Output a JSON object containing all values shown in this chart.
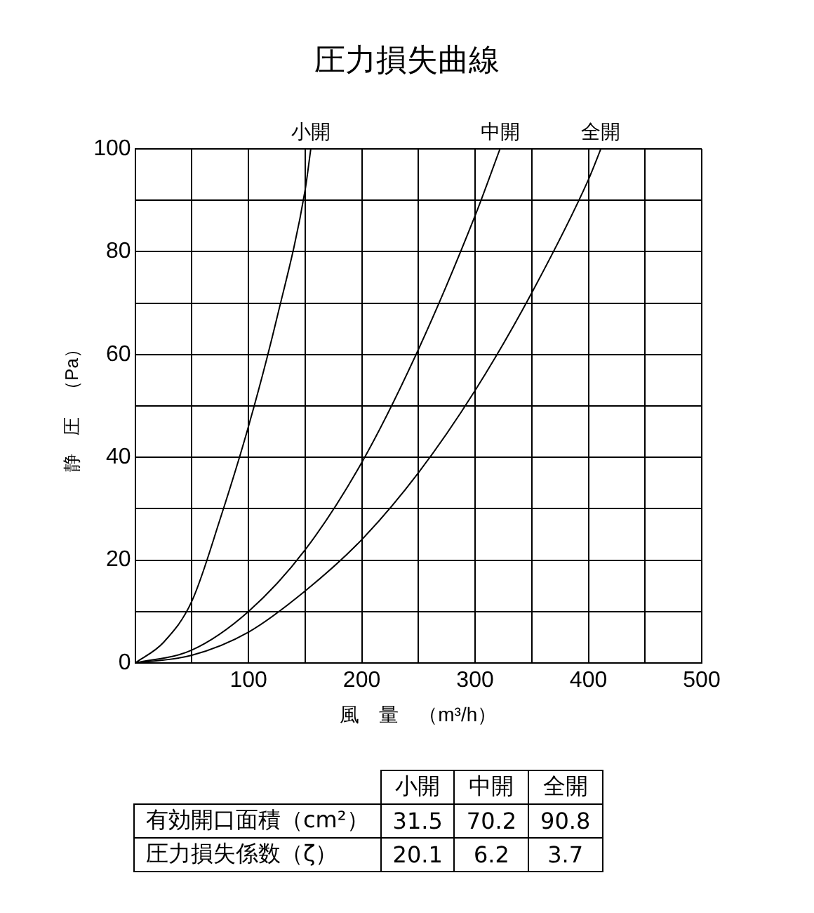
{
  "chart_data": {
    "type": "line",
    "title": "圧力損失曲線",
    "xlabel": "風　量　（m³/h）",
    "ylabel": "静　圧　（Pa）",
    "series": [
      {
        "name": "小開",
        "color": "#000000",
        "x": [
          0,
          25,
          50,
          75,
          100,
          125,
          150,
          155
        ],
        "values": [
          0,
          4,
          12,
          28,
          46,
          67,
          92,
          100
        ]
      },
      {
        "name": "中開",
        "color": "#000000",
        "x": [
          0,
          50,
          100,
          150,
          200,
          250,
          300,
          322
        ],
        "values": [
          0,
          2.5,
          10,
          22,
          39,
          61,
          87,
          100
        ]
      },
      {
        "name": "全開",
        "color": "#000000",
        "x": [
          0,
          50,
          100,
          150,
          200,
          250,
          300,
          350,
          400,
          411
        ],
        "values": [
          0,
          1.5,
          6,
          14,
          24,
          37,
          53,
          72,
          94,
          100
        ]
      }
    ],
    "xlim": [
      0,
      500
    ],
    "ylim": [
      0,
      100
    ],
    "xticks": [
      {
        "value": 0,
        "label": null
      },
      {
        "value": 50,
        "label": null
      },
      100,
      {
        "value": 150,
        "label": null
      },
      200,
      {
        "value": 250,
        "label": null
      },
      300,
      {
        "value": 350,
        "label": null
      },
      400,
      {
        "value": 450,
        "label": null
      },
      500
    ],
    "yticks": [
      0,
      {
        "value": 10,
        "label": null
      },
      20,
      {
        "value": 30,
        "label": null
      },
      40,
      {
        "value": 50,
        "label": null
      },
      60,
      {
        "value": 70,
        "label": null
      },
      80,
      {
        "value": 90,
        "label": null
      },
      100
    ],
    "grid": true,
    "legend": false,
    "marker": "none",
    "line_style": "solid",
    "annotations": [
      "小開",
      "中開",
      "全開",
      "有効開口面積（cm²）",
      "31.5",
      "70.2",
      "90.8",
      "圧力損失係数（ζ）",
      "20.1",
      "6.2",
      "3.7"
    ]
  }
}
